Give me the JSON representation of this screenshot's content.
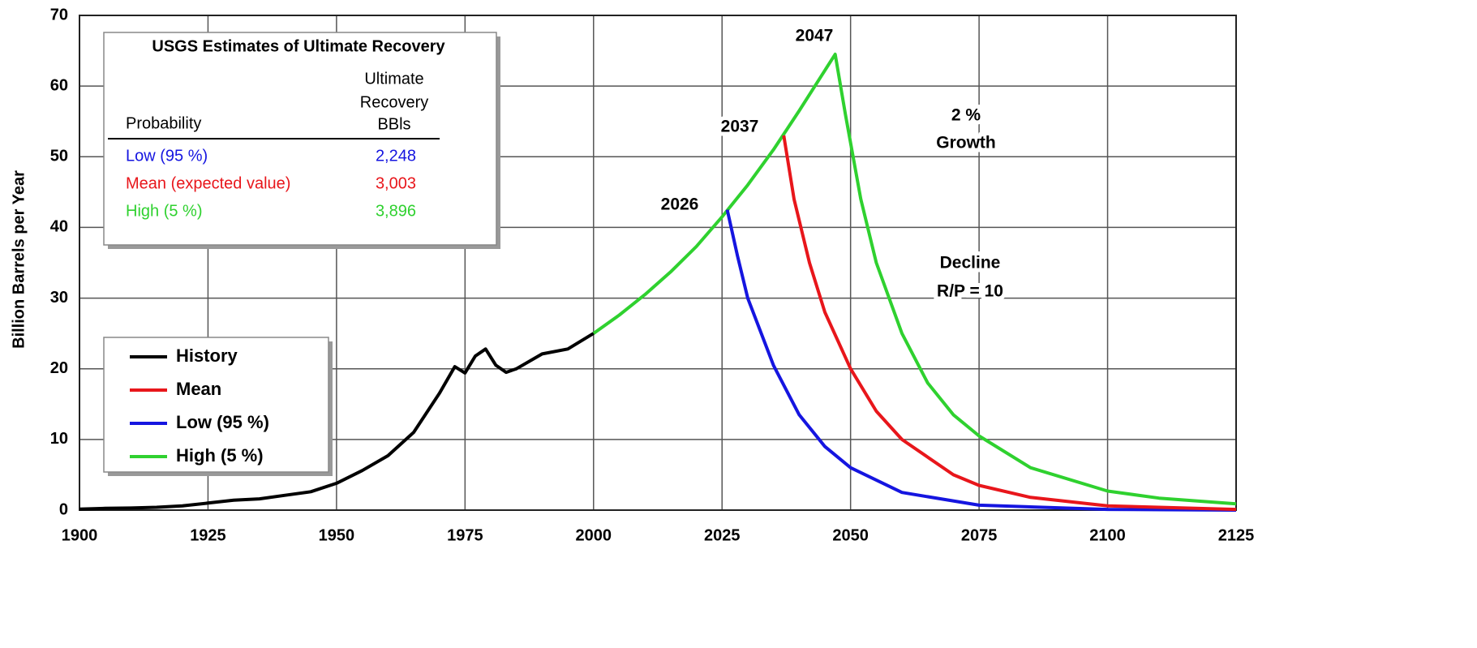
{
  "chart_data": {
    "type": "line",
    "y_label": "Billion Barrels per Year",
    "xlim": [
      1900,
      2125
    ],
    "xticks": [
      1900,
      1925,
      1950,
      1975,
      2000,
      2025,
      2050,
      2075,
      2100,
      2125
    ],
    "ylim": [
      0,
      70
    ],
    "yticks": [
      0,
      10,
      20,
      30,
      40,
      50,
      60,
      70
    ],
    "grid": true,
    "legend": "lower left",
    "series": [
      {
        "name": "History",
        "color": "#000000",
        "x": [
          1900,
          1905,
          1910,
          1915,
          1920,
          1925,
          1930,
          1935,
          1940,
          1945,
          1950,
          1955,
          1960,
          1965,
          1970,
          1973,
          1975,
          1977,
          1979,
          1981,
          1983,
          1985,
          1990,
          1995,
          2000
        ],
        "values": [
          0.15,
          0.25,
          0.3,
          0.4,
          0.6,
          1.0,
          1.4,
          1.6,
          2.1,
          2.6,
          3.8,
          5.6,
          7.7,
          11.0,
          16.5,
          20.3,
          19.4,
          21.8,
          22.8,
          20.5,
          19.5,
          20.0,
          22.1,
          22.8,
          25.0
        ]
      },
      {
        "name": "Mean",
        "color": "#e8161b",
        "x": [
          2037,
          2039,
          2042,
          2045,
          2050,
          2055,
          2060,
          2070,
          2075,
          2085,
          2100,
          2125
        ],
        "values": [
          53,
          44,
          35,
          28,
          20,
          14,
          10,
          5,
          3.5,
          1.8,
          0.6,
          0.1
        ]
      },
      {
        "name": "Low (95 %)",
        "color": "#1515e0",
        "x": [
          2026,
          2028,
          2030,
          2035,
          2040,
          2045,
          2050,
          2060,
          2075,
          2100,
          2125
        ],
        "values": [
          42.5,
          36,
          30,
          20.5,
          13.5,
          9,
          6,
          2.5,
          0.7,
          0.1,
          0
        ]
      },
      {
        "name": "High (5 %)",
        "color": "#2fd12f",
        "x": [
          2000,
          2005,
          2010,
          2015,
          2020,
          2025,
          2030,
          2035,
          2040,
          2047,
          2049,
          2052,
          2055,
          2060,
          2065,
          2070,
          2075,
          2085,
          2100,
          2110,
          2125
        ],
        "values": [
          25,
          27.6,
          30.5,
          33.7,
          37.3,
          41.5,
          46,
          51,
          56.5,
          64.5,
          56,
          44,
          35,
          25,
          18,
          13.5,
          10.5,
          6,
          2.7,
          1.7,
          0.9
        ]
      }
    ],
    "annotations": [
      "2026",
      "2037",
      "2047",
      "2 %",
      "Growth",
      "Decline",
      "R/P = 10"
    ],
    "table": {
      "title": "USGS Estimates of Ultimate Recovery",
      "header": [
        "Probability",
        "Ultimate",
        "Recovery",
        "BBls"
      ],
      "rows": [
        {
          "cells": [
            "Low (95 %)",
            "2,248"
          ],
          "color": "#1515e0"
        },
        {
          "cells": [
            "Mean (expected value)",
            "3,003"
          ],
          "color": "#e8161b"
        },
        {
          "cells": [
            "High (5 %)",
            "3,896"
          ],
          "color": "#2fd12f"
        }
      ]
    }
  }
}
